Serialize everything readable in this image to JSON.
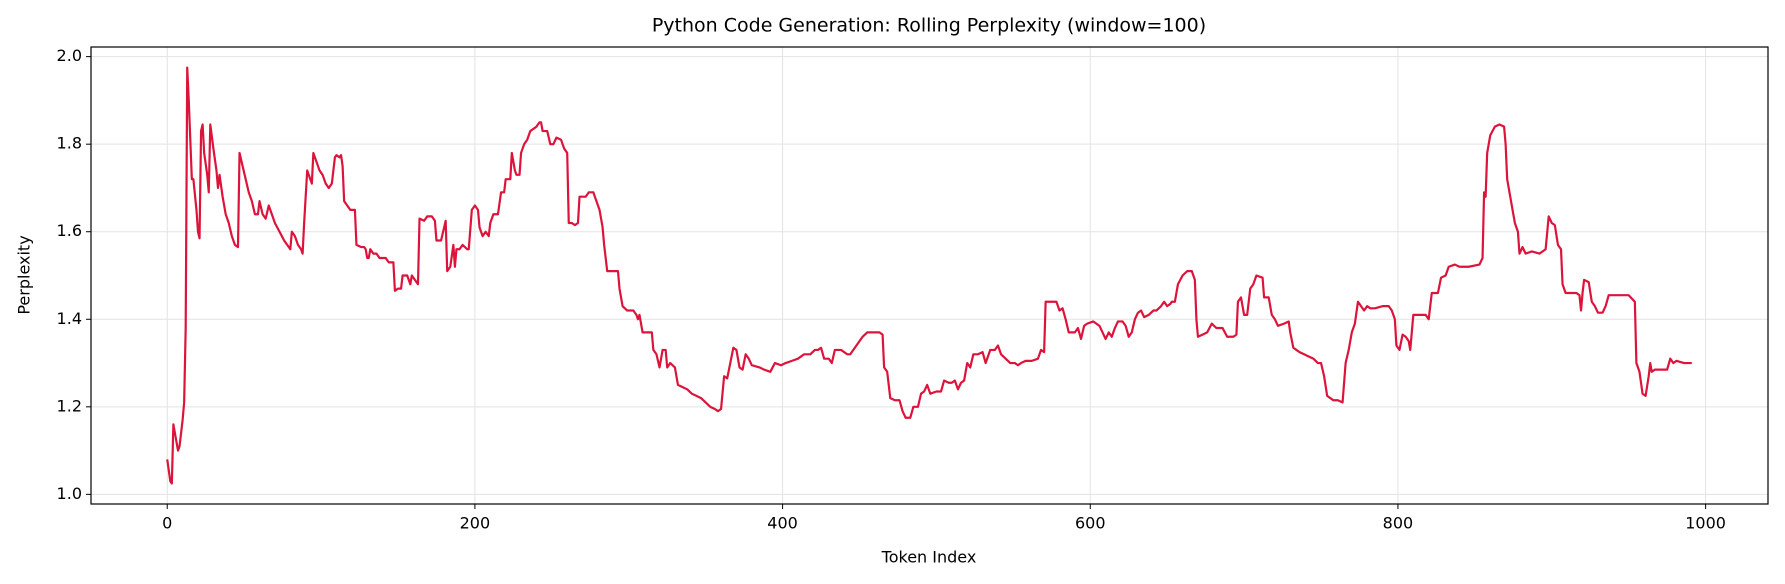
{
  "chart_data": {
    "type": "line",
    "title": "Python Code Generation: Rolling Perplexity (window=100)",
    "x_label": "Token Index",
    "y_label": "Perplexity",
    "color": "#dc143c",
    "grid": true,
    "xlim": [
      -49.55,
      1040.55
    ],
    "ylim": [
      0.978,
      2.022
    ],
    "xticks": [
      0,
      200,
      400,
      600,
      800,
      1000
    ],
    "yticks": [
      {
        "value": 1,
        "label": "1.0"
      },
      1.2,
      1.4,
      1.6,
      1.8,
      {
        "value": 2,
        "label": "2.0"
      }
    ],
    "x": [
      0,
      2,
      3,
      4,
      6,
      7,
      8,
      10,
      11,
      12,
      13,
      14,
      16,
      17,
      19,
      20,
      21,
      22,
      23,
      24,
      26,
      27,
      28,
      30,
      32,
      33,
      34,
      36,
      38,
      40,
      42,
      44,
      46,
      47,
      49,
      51,
      53,
      55,
      57,
      59,
      60,
      62,
      64,
      66,
      68,
      70,
      73,
      76,
      78,
      80,
      81,
      83,
      85,
      87,
      88,
      89,
      91,
      93,
      94,
      95,
      97,
      99,
      101,
      103,
      105,
      107,
      109,
      110,
      112,
      113,
      114,
      115,
      117,
      119,
      122,
      123,
      126,
      128,
      129,
      130,
      131,
      132,
      134,
      136,
      138,
      142,
      144,
      147,
      148,
      150,
      152,
      153,
      156,
      158,
      159,
      161,
      163,
      164,
      167,
      169,
      172,
      174,
      175,
      178,
      180,
      181,
      182,
      184,
      186,
      187,
      188,
      190,
      192,
      195,
      196,
      198,
      200,
      202,
      203,
      205,
      207,
      209,
      210,
      212,
      215,
      217,
      219,
      220,
      223,
      224,
      226,
      227,
      229,
      230,
      232,
      234,
      236,
      238,
      240,
      242,
      243,
      244,
      247,
      249,
      251,
      253,
      256,
      258,
      260,
      261,
      263,
      265,
      267,
      268,
      270,
      272,
      274,
      277,
      279,
      281,
      283,
      284,
      286,
      289,
      291,
      293,
      294,
      296,
      299,
      303,
      305,
      306,
      307,
      309,
      312,
      315,
      316,
      318,
      320,
      322,
      324,
      325,
      327,
      330,
      332,
      335,
      338,
      341,
      344,
      347,
      350,
      353,
      356,
      358,
      360,
      362,
      364,
      366,
      368,
      370,
      372,
      374,
      376,
      378,
      380,
      385,
      388,
      392,
      395,
      399,
      402,
      406,
      410,
      414,
      418,
      421,
      423,
      425,
      427,
      430,
      432,
      434,
      438,
      442,
      444,
      446,
      448,
      450,
      452,
      455,
      460,
      463,
      465,
      466,
      468,
      470,
      473,
      476,
      478,
      480,
      483,
      485,
      488,
      490,
      492,
      494,
      496,
      500,
      503,
      505,
      508,
      510,
      512,
      514,
      516,
      518,
      520,
      522,
      524,
      527,
      530,
      532,
      535,
      538,
      540,
      542,
      545,
      548,
      551,
      553,
      555,
      558,
      562,
      566,
      568,
      570,
      571,
      573,
      578,
      580,
      582,
      584,
      586,
      590,
      592,
      594,
      596,
      598,
      602,
      606,
      608,
      610,
      612,
      614,
      616,
      618,
      621,
      623,
      625,
      627,
      629,
      631,
      633,
      635,
      638,
      641,
      643,
      646,
      648,
      650,
      652,
      653,
      655,
      657,
      660,
      663,
      666,
      668,
      669,
      670,
      673,
      676,
      679,
      682,
      686,
      689,
      693,
      695,
      696,
      698,
      700,
      702,
      704,
      706,
      708,
      712,
      713,
      716,
      718,
      720,
      722,
      726,
      729,
      730,
      732,
      734,
      736,
      739,
      742,
      745,
      748,
      750,
      752,
      754,
      756,
      758,
      761,
      764,
      766,
      768,
      770,
      772,
      774,
      776,
      778,
      780,
      782,
      785,
      790,
      794,
      796,
      798,
      799,
      801,
      803,
      805,
      807,
      808,
      810,
      813,
      818,
      820,
      822,
      826,
      828,
      831,
      833,
      837,
      840,
      846,
      853,
      855,
      856,
      857,
      858,
      860,
      863,
      866,
      869,
      870,
      871,
      873,
      875,
      876,
      878,
      879,
      881,
      883,
      887,
      892,
      896,
      898,
      900,
      902,
      904,
      906,
      907,
      909,
      916,
      918,
      919,
      920,
      921,
      924,
      926,
      928,
      930,
      933,
      935,
      937,
      950,
      954,
      955,
      957,
      959,
      961,
      963,
      964,
      965,
      967,
      975,
      977,
      979,
      981,
      986,
      991
    ],
    "values": [
      1.08,
      1.03,
      1.025,
      1.16,
      1.12,
      1.1,
      1.11,
      1.17,
      1.21,
      1.38,
      1.975,
      1.9,
      1.72,
      1.72,
      1.65,
      1.6,
      1.585,
      1.83,
      1.845,
      1.78,
      1.73,
      1.69,
      1.845,
      1.79,
      1.74,
      1.7,
      1.73,
      1.68,
      1.64,
      1.62,
      1.59,
      1.57,
      1.565,
      1.78,
      1.75,
      1.72,
      1.69,
      1.67,
      1.64,
      1.64,
      1.67,
      1.64,
      1.63,
      1.66,
      1.64,
      1.62,
      1.6,
      1.58,
      1.57,
      1.56,
      1.6,
      1.59,
      1.57,
      1.56,
      1.55,
      1.62,
      1.74,
      1.72,
      1.71,
      1.78,
      1.76,
      1.74,
      1.73,
      1.71,
      1.7,
      1.71,
      1.77,
      1.775,
      1.77,
      1.775,
      1.75,
      1.67,
      1.66,
      1.65,
      1.65,
      1.57,
      1.565,
      1.565,
      1.56,
      1.54,
      1.54,
      1.56,
      1.55,
      1.55,
      1.54,
      1.54,
      1.53,
      1.53,
      1.465,
      1.47,
      1.47,
      1.5,
      1.5,
      1.48,
      1.5,
      1.49,
      1.48,
      1.63,
      1.625,
      1.635,
      1.635,
      1.625,
      1.58,
      1.58,
      1.61,
      1.625,
      1.51,
      1.52,
      1.57,
      1.52,
      1.56,
      1.56,
      1.57,
      1.56,
      1.56,
      1.65,
      1.66,
      1.65,
      1.61,
      1.59,
      1.6,
      1.59,
      1.62,
      1.64,
      1.64,
      1.69,
      1.69,
      1.72,
      1.72,
      1.78,
      1.74,
      1.73,
      1.73,
      1.78,
      1.8,
      1.81,
      1.83,
      1.835,
      1.84,
      1.85,
      1.85,
      1.83,
      1.83,
      1.8,
      1.8,
      1.815,
      1.81,
      1.79,
      1.78,
      1.62,
      1.62,
      1.615,
      1.62,
      1.68,
      1.68,
      1.68,
      1.69,
      1.69,
      1.67,
      1.65,
      1.61,
      1.57,
      1.51,
      1.51,
      1.51,
      1.51,
      1.47,
      1.43,
      1.42,
      1.42,
      1.41,
      1.4,
      1.41,
      1.37,
      1.37,
      1.37,
      1.33,
      1.32,
      1.29,
      1.33,
      1.33,
      1.29,
      1.3,
      1.29,
      1.25,
      1.245,
      1.24,
      1.23,
      1.225,
      1.22,
      1.21,
      1.2,
      1.195,
      1.19,
      1.195,
      1.27,
      1.265,
      1.3,
      1.335,
      1.33,
      1.29,
      1.285,
      1.32,
      1.31,
      1.295,
      1.29,
      1.285,
      1.28,
      1.3,
      1.295,
      1.3,
      1.305,
      1.31,
      1.32,
      1.32,
      1.33,
      1.33,
      1.335,
      1.31,
      1.31,
      1.3,
      1.33,
      1.33,
      1.32,
      1.32,
      1.33,
      1.34,
      1.35,
      1.36,
      1.37,
      1.37,
      1.37,
      1.365,
      1.29,
      1.28,
      1.22,
      1.215,
      1.215,
      1.19,
      1.175,
      1.175,
      1.2,
      1.2,
      1.23,
      1.235,
      1.25,
      1.23,
      1.235,
      1.235,
      1.26,
      1.255,
      1.255,
      1.26,
      1.24,
      1.255,
      1.26,
      1.3,
      1.29,
      1.32,
      1.32,
      1.325,
      1.3,
      1.33,
      1.33,
      1.34,
      1.32,
      1.31,
      1.3,
      1.3,
      1.295,
      1.3,
      1.305,
      1.305,
      1.31,
      1.33,
      1.325,
      1.44,
      1.44,
      1.44,
      1.42,
      1.425,
      1.4,
      1.37,
      1.37,
      1.38,
      1.355,
      1.385,
      1.39,
      1.395,
      1.385,
      1.37,
      1.355,
      1.37,
      1.36,
      1.38,
      1.395,
      1.395,
      1.385,
      1.36,
      1.37,
      1.4,
      1.415,
      1.42,
      1.405,
      1.41,
      1.42,
      1.42,
      1.43,
      1.44,
      1.43,
      1.435,
      1.44,
      1.44,
      1.48,
      1.5,
      1.51,
      1.51,
      1.49,
      1.4,
      1.36,
      1.365,
      1.37,
      1.39,
      1.38,
      1.38,
      1.36,
      1.36,
      1.365,
      1.44,
      1.45,
      1.41,
      1.41,
      1.47,
      1.48,
      1.5,
      1.495,
      1.45,
      1.45,
      1.41,
      1.4,
      1.385,
      1.39,
      1.395,
      1.37,
      1.335,
      1.33,
      1.325,
      1.32,
      1.315,
      1.31,
      1.3,
      1.3,
      1.27,
      1.225,
      1.22,
      1.215,
      1.215,
      1.21,
      1.3,
      1.33,
      1.37,
      1.39,
      1.44,
      1.43,
      1.42,
      1.43,
      1.425,
      1.425,
      1.43,
      1.43,
      1.42,
      1.4,
      1.34,
      1.33,
      1.365,
      1.36,
      1.35,
      1.33,
      1.41,
      1.41,
      1.41,
      1.4,
      1.46,
      1.46,
      1.495,
      1.5,
      1.52,
      1.525,
      1.52,
      1.52,
      1.525,
      1.54,
      1.69,
      1.68,
      1.78,
      1.82,
      1.84,
      1.845,
      1.84,
      1.8,
      1.72,
      1.68,
      1.64,
      1.62,
      1.6,
      1.55,
      1.565,
      1.55,
      1.555,
      1.55,
      1.56,
      1.635,
      1.62,
      1.615,
      1.57,
      1.56,
      1.48,
      1.46,
      1.46,
      1.455,
      1.42,
      1.46,
      1.49,
      1.485,
      1.44,
      1.43,
      1.415,
      1.415,
      1.43,
      1.455,
      1.455,
      1.44,
      1.3,
      1.28,
      1.23,
      1.225,
      1.27,
      1.3,
      1.28,
      1.285,
      1.285,
      1.31,
      1.3,
      1.305,
      1.3,
      1.3
    ]
  }
}
